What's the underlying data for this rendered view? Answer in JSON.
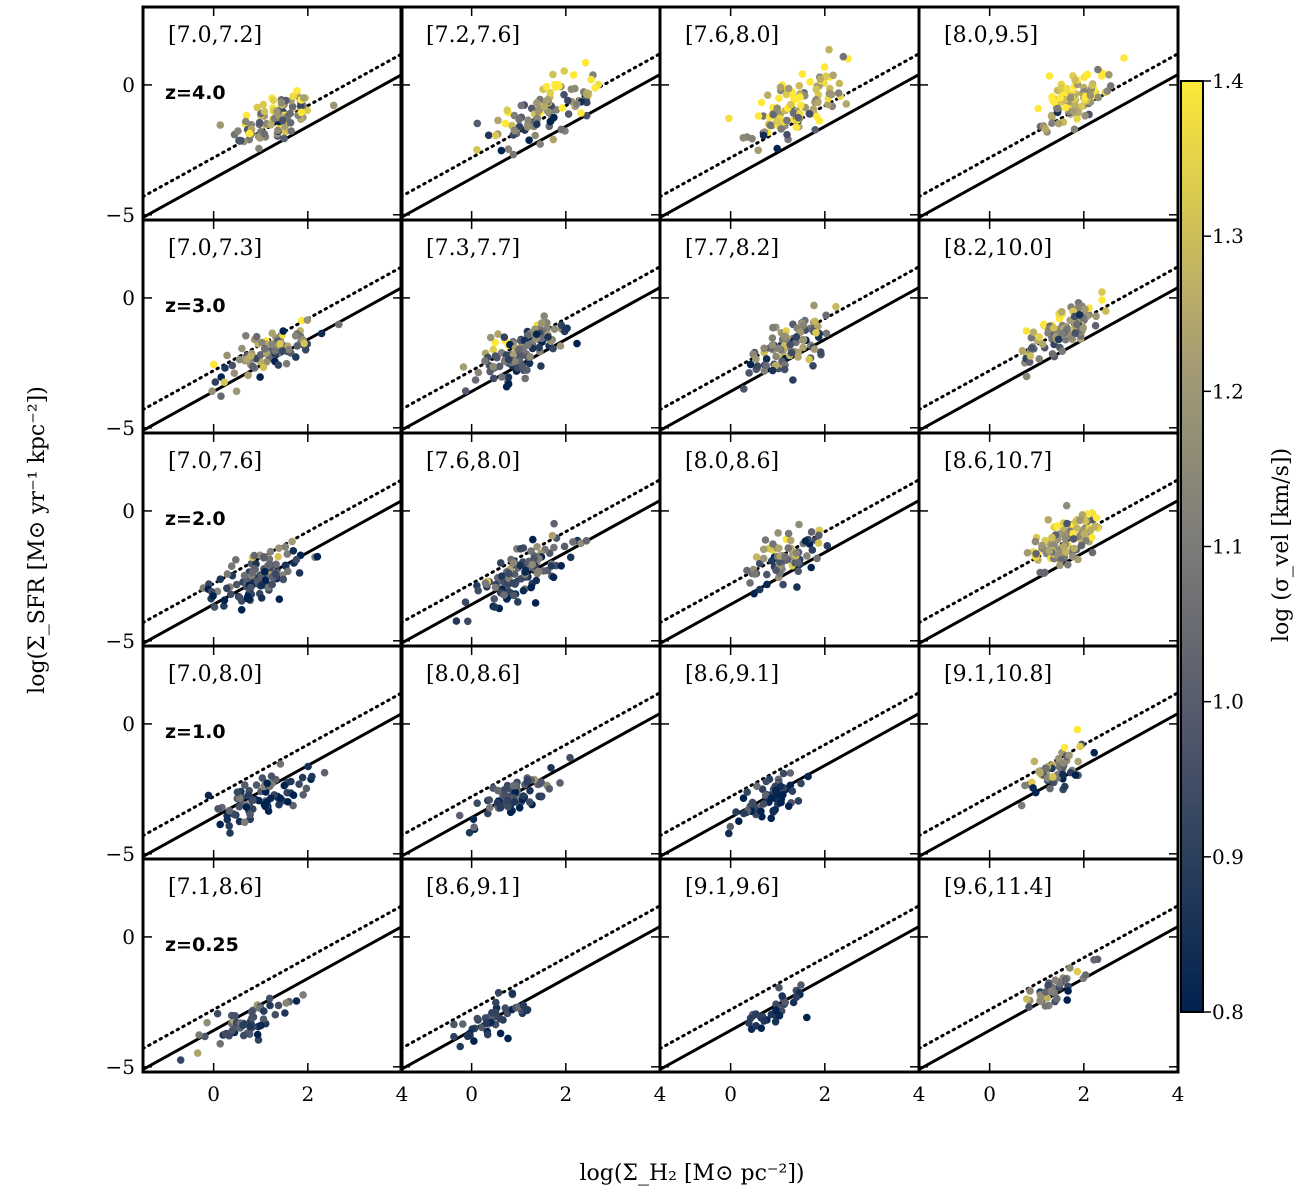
{
  "figure": {
    "xlabel": "log(Σ_H₂ [M⊙ pc⁻²])",
    "ylabel": "log(Σ_SFR [M⊙ yr⁻¹ kpc⁻²])",
    "colorbar_label": "log (σ_vel [km/s])"
  },
  "chart_data": {
    "type": "scatter",
    "layout": "5 rows (redshift) × 4 columns (stellar-mass bin), shared axes",
    "xlim": [
      -1.5,
      4
    ],
    "ylim": [
      -5.2,
      3.0
    ],
    "xticks": [
      0,
      2,
      4
    ],
    "yticks": [
      0,
      -5
    ],
    "color_scale": {
      "label": "log (σ_vel [km/s])",
      "min": 0.8,
      "max": 1.4,
      "ticks": [
        0.8,
        0.9,
        1.0,
        1.1,
        1.2,
        1.3,
        1.4
      ],
      "colors": [
        "#00224e",
        "#575c6d",
        "#7c7b78",
        "#fee838"
      ]
    },
    "reference_lines": [
      {
        "style": "solid",
        "slope": 1,
        "intercept": -3.6
      },
      {
        "style": "dotted",
        "slope": 1,
        "intercept": -2.8
      }
    ],
    "rows": [
      {
        "z_label": "z=4.0",
        "panels": [
          {
            "bin": "[7.0,7.2]",
            "center": [
              1.3,
              -1.3
            ],
            "spread": [
              0.45,
              0.9
            ],
            "slope": 0.7,
            "n": 95,
            "sigma_mean": 1.18,
            "sigma_spread": 0.16
          },
          {
            "bin": "[7.2,7.6]",
            "center": [
              1.6,
              -1.0
            ],
            "spread": [
              0.6,
              1.0
            ],
            "slope": 0.7,
            "n": 105,
            "sigma_mean": 1.18,
            "sigma_spread": 0.17
          },
          {
            "bin": "[7.6,8.0]",
            "center": [
              1.4,
              -0.8
            ],
            "spread": [
              0.5,
              1.0
            ],
            "slope": 0.9,
            "n": 115,
            "sigma_mean": 1.25,
            "sigma_spread": 0.14
          },
          {
            "bin": "[8.0,9.5]",
            "center": [
              1.8,
              -0.5
            ],
            "spread": [
              0.35,
              0.8
            ],
            "slope": 0.9,
            "n": 110,
            "sigma_mean": 1.29,
            "sigma_spread": 0.11
          }
        ]
      },
      {
        "z_label": "z=3.0",
        "panels": [
          {
            "bin": "[7.0,7.3]",
            "center": [
              1.2,
              -2.1
            ],
            "spread": [
              0.5,
              0.8
            ],
            "slope": 0.8,
            "n": 95,
            "sigma_mean": 1.08,
            "sigma_spread": 0.14
          },
          {
            "bin": "[7.3,7.7]",
            "center": [
              1.1,
              -2.0
            ],
            "spread": [
              0.5,
              0.9
            ],
            "slope": 0.9,
            "n": 115,
            "sigma_mean": 1.02,
            "sigma_spread": 0.14
          },
          {
            "bin": "[7.7,8.2]",
            "center": [
              1.2,
              -1.9
            ],
            "spread": [
              0.5,
              0.9
            ],
            "slope": 0.9,
            "n": 100,
            "sigma_mean": 1.1,
            "sigma_spread": 0.14
          },
          {
            "bin": "[8.2,10.0]",
            "center": [
              1.6,
              -1.2
            ],
            "spread": [
              0.4,
              0.8
            ],
            "slope": 0.95,
            "n": 110,
            "sigma_mean": 1.2,
            "sigma_spread": 0.12
          }
        ]
      },
      {
        "z_label": "z=2.0",
        "panels": [
          {
            "bin": "[7.0,7.6]",
            "center": [
              1.0,
              -2.5
            ],
            "spread": [
              0.5,
              0.8
            ],
            "slope": 0.7,
            "n": 120,
            "sigma_mean": 0.95,
            "sigma_spread": 0.12
          },
          {
            "bin": "[7.6,8.0]",
            "center": [
              1.0,
              -2.4
            ],
            "spread": [
              0.5,
              0.9
            ],
            "slope": 0.9,
            "n": 110,
            "sigma_mean": 0.98,
            "sigma_spread": 0.13
          },
          {
            "bin": "[8.0,8.6]",
            "center": [
              1.2,
              -1.8
            ],
            "spread": [
              0.4,
              0.8
            ],
            "slope": 0.9,
            "n": 75,
            "sigma_mean": 1.05,
            "sigma_spread": 0.14
          },
          {
            "bin": "[8.6,10.7]",
            "center": [
              1.6,
              -1.1
            ],
            "spread": [
              0.4,
              0.8
            ],
            "slope": 1.0,
            "n": 110,
            "sigma_mean": 1.22,
            "sigma_spread": 0.12
          }
        ]
      },
      {
        "z_label": "z=1.0",
        "panels": [
          {
            "bin": "[7.0,8.0]",
            "center": [
              1.0,
              -2.8
            ],
            "spread": [
              0.55,
              0.7
            ],
            "slope": 0.6,
            "n": 85,
            "sigma_mean": 0.92,
            "sigma_spread": 0.1
          },
          {
            "bin": "[8.0,8.6]",
            "center": [
              0.9,
              -2.8
            ],
            "spread": [
              0.5,
              0.7
            ],
            "slope": 0.8,
            "n": 75,
            "sigma_mean": 0.92,
            "sigma_spread": 0.1
          },
          {
            "bin": "[8.6,9.1]",
            "center": [
              0.9,
              -2.7
            ],
            "spread": [
              0.35,
              0.7
            ],
            "slope": 0.9,
            "n": 65,
            "sigma_mean": 0.9,
            "sigma_spread": 0.08
          },
          {
            "bin": "[9.1,10.8]",
            "center": [
              1.4,
              -1.8
            ],
            "spread": [
              0.35,
              0.7
            ],
            "slope": 1.0,
            "n": 55,
            "sigma_mean": 1.1,
            "sigma_spread": 0.15
          }
        ]
      },
      {
        "z_label": "z=0.25",
        "panels": [
          {
            "bin": "[7.1,8.6]",
            "center": [
              0.7,
              -3.3
            ],
            "spread": [
              0.55,
              0.7
            ],
            "slope": 0.7,
            "n": 55,
            "sigma_mean": 0.93,
            "sigma_spread": 0.1
          },
          {
            "bin": "[8.6,9.1]",
            "center": [
              0.6,
              -3.1
            ],
            "spread": [
              0.45,
              0.7
            ],
            "slope": 0.9,
            "n": 45,
            "sigma_mean": 0.9,
            "sigma_spread": 0.07
          },
          {
            "bin": "[9.1,9.6]",
            "center": [
              0.9,
              -2.9
            ],
            "spread": [
              0.3,
              0.5
            ],
            "slope": 0.9,
            "n": 35,
            "sigma_mean": 0.87,
            "sigma_spread": 0.05
          },
          {
            "bin": "[9.6,11.4]",
            "center": [
              1.4,
              -2.0
            ],
            "spread": [
              0.4,
              0.6
            ],
            "slope": 1.0,
            "n": 40,
            "sigma_mean": 1.05,
            "sigma_spread": 0.12
          }
        ]
      }
    ]
  }
}
